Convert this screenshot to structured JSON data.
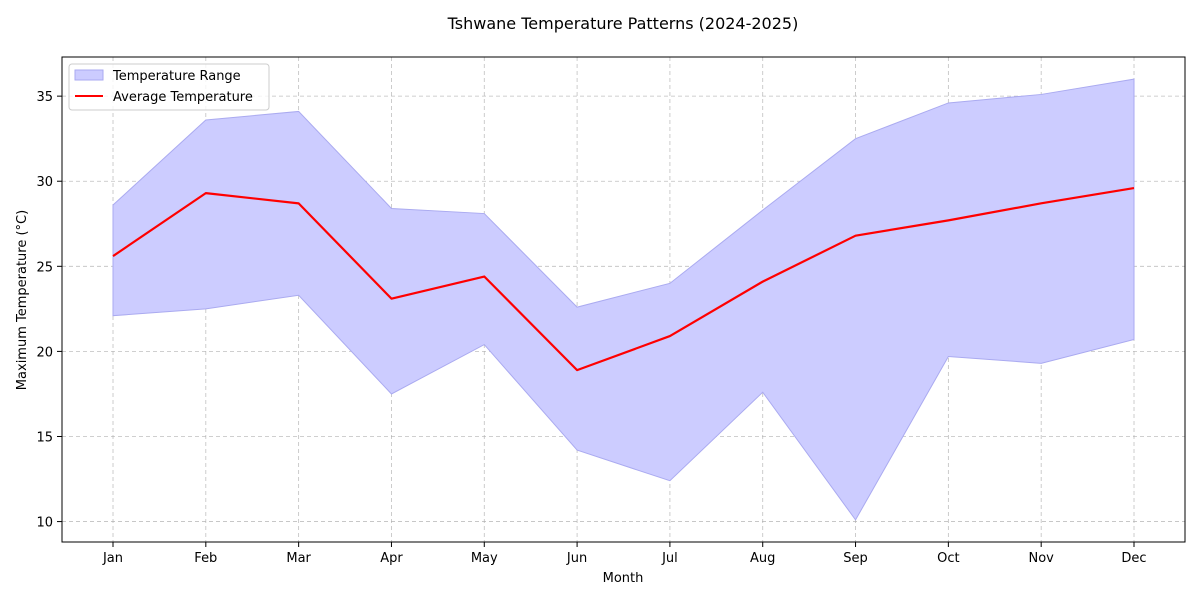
{
  "chart_data": {
    "type": "area",
    "title": "Tshwane Temperature Patterns (2024-2025)",
    "xlabel": "Month",
    "ylabel": "Maximum Temperature (°C)",
    "categories": [
      "Jan",
      "Feb",
      "Mar",
      "Apr",
      "May",
      "Jun",
      "Jul",
      "Aug",
      "Sep",
      "Oct",
      "Nov",
      "Dec"
    ],
    "ylim": [
      8.8,
      37.3
    ],
    "yticks": [
      10,
      15,
      20,
      25,
      30,
      35
    ],
    "grid": true,
    "legend_position": "top-left",
    "series": [
      {
        "name": "Temperature Range",
        "kind": "range",
        "color": "#ccccff",
        "edge_color": "#aaaaf0",
        "lower": [
          22.1,
          22.5,
          23.3,
          17.5,
          20.4,
          14.2,
          12.4,
          17.6,
          10.1,
          19.7,
          19.3,
          20.7
        ],
        "upper": [
          28.6,
          33.6,
          34.1,
          28.4,
          28.1,
          22.6,
          24.0,
          28.3,
          32.5,
          34.6,
          35.1,
          36.0
        ]
      },
      {
        "name": "Average Temperature",
        "kind": "line",
        "color": "#ff0000",
        "values": [
          25.6,
          29.3,
          28.7,
          23.1,
          24.4,
          18.9,
          20.9,
          24.1,
          26.8,
          27.7,
          28.7,
          29.6
        ]
      }
    ]
  }
}
